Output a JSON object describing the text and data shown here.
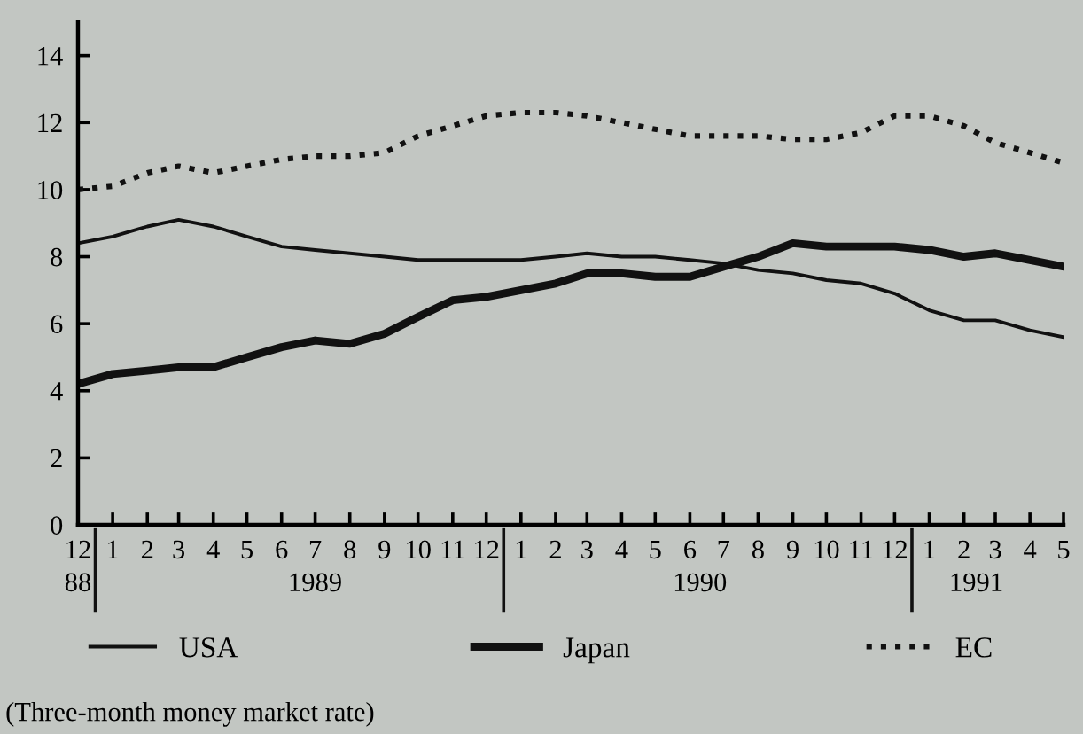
{
  "chart_data": {
    "type": "line",
    "x": [
      "1988-12",
      "1989-01",
      "1989-02",
      "1989-03",
      "1989-04",
      "1989-05",
      "1989-06",
      "1989-07",
      "1989-08",
      "1989-09",
      "1989-10",
      "1989-11",
      "1989-12",
      "1990-01",
      "1990-02",
      "1990-03",
      "1990-04",
      "1990-05",
      "1990-06",
      "1990-07",
      "1990-08",
      "1990-09",
      "1990-10",
      "1990-11",
      "1990-12",
      "1991-01",
      "1991-02",
      "1991-03",
      "1991-04",
      "1991-05"
    ],
    "series": [
      {
        "name": "USA",
        "color": "#111111",
        "line_style": "solid",
        "values": [
          8.4,
          8.6,
          8.9,
          9.1,
          8.9,
          8.6,
          8.3,
          8.2,
          8.1,
          8.0,
          7.9,
          7.9,
          7.9,
          7.9,
          8.0,
          8.1,
          8.0,
          8.0,
          7.9,
          7.8,
          7.6,
          7.5,
          7.3,
          7.2,
          6.9,
          6.4,
          6.1,
          6.1,
          5.8,
          5.6
        ]
      },
      {
        "name": "Japan",
        "color": "#111111",
        "line_style": "solid",
        "values": [
          4.2,
          4.5,
          4.6,
          4.7,
          4.7,
          5.0,
          5.3,
          5.5,
          5.4,
          5.7,
          6.2,
          6.7,
          6.8,
          7.0,
          7.2,
          7.5,
          7.5,
          7.4,
          7.4,
          7.7,
          8.0,
          8.4,
          8.3,
          8.3,
          8.3,
          8.2,
          8.0,
          8.1,
          7.9,
          7.7
        ]
      },
      {
        "name": "EC",
        "color": "#111111",
        "line_style": "dotted",
        "values": [
          10.0,
          10.1,
          10.5,
          10.7,
          10.5,
          10.7,
          10.9,
          11.0,
          11.0,
          11.1,
          11.6,
          11.9,
          12.2,
          12.3,
          12.3,
          12.2,
          12.0,
          11.8,
          11.6,
          11.6,
          11.6,
          11.5,
          11.5,
          11.7,
          12.2,
          12.2,
          11.9,
          11.4,
          11.1,
          10.8
        ]
      }
    ],
    "xlim": [
      "1988-12",
      "1991-05"
    ],
    "xticks": [
      {
        "value": "1988-12",
        "label": "12"
      },
      {
        "value": "1989-01",
        "label": "1"
      },
      {
        "value": "1989-02",
        "label": "2"
      },
      {
        "value": "1989-03",
        "label": "3"
      },
      {
        "value": "1989-04",
        "label": "4"
      },
      {
        "value": "1989-05",
        "label": "5"
      },
      {
        "value": "1989-06",
        "label": "6"
      },
      {
        "value": "1989-07",
        "label": "7"
      },
      {
        "value": "1989-08",
        "label": "8"
      },
      {
        "value": "1989-09",
        "label": "9"
      },
      {
        "value": "1989-10",
        "label": "10"
      },
      {
        "value": "1989-11",
        "label": "11"
      },
      {
        "value": "1989-12",
        "label": "12"
      },
      {
        "value": "1990-01",
        "label": "1"
      },
      {
        "value": "1990-02",
        "label": "2"
      },
      {
        "value": "1990-03",
        "label": "3"
      },
      {
        "value": "1990-04",
        "label": "4"
      },
      {
        "value": "1990-05",
        "label": "5"
      },
      {
        "value": "1990-06",
        "label": "6"
      },
      {
        "value": "1990-07",
        "label": "7"
      },
      {
        "value": "1990-08",
        "label": "8"
      },
      {
        "value": "1990-09",
        "label": "9"
      },
      {
        "value": "1990-10",
        "label": "10"
      },
      {
        "value": "1990-11",
        "label": "11"
      },
      {
        "value": "1990-12",
        "label": "12"
      },
      {
        "value": "1991-01",
        "label": "1"
      },
      {
        "value": "1991-02",
        "label": "2"
      },
      {
        "value": "1991-03",
        "label": "3"
      },
      {
        "value": "1991-04",
        "label": "4"
      },
      {
        "value": "1991-05",
        "label": "5"
      }
    ],
    "x2ticks": [
      {
        "value": "1988-12",
        "label": "88"
      },
      {
        "value": "1989-07-01",
        "label": "1989"
      },
      {
        "value": "1990-06-10",
        "label": "1990"
      },
      {
        "value": "1991-02-12",
        "label": "1991"
      }
    ],
    "x2lim": [
      "1988-12",
      "1991-05"
    ],
    "ylim": [
      0,
      15
    ],
    "yticks": [
      0,
      2,
      4,
      6,
      8,
      10,
      12,
      14
    ],
    "grid": false,
    "legend": "bottom",
    "annotations": [
      "(Three-month money market rate)"
    ]
  }
}
